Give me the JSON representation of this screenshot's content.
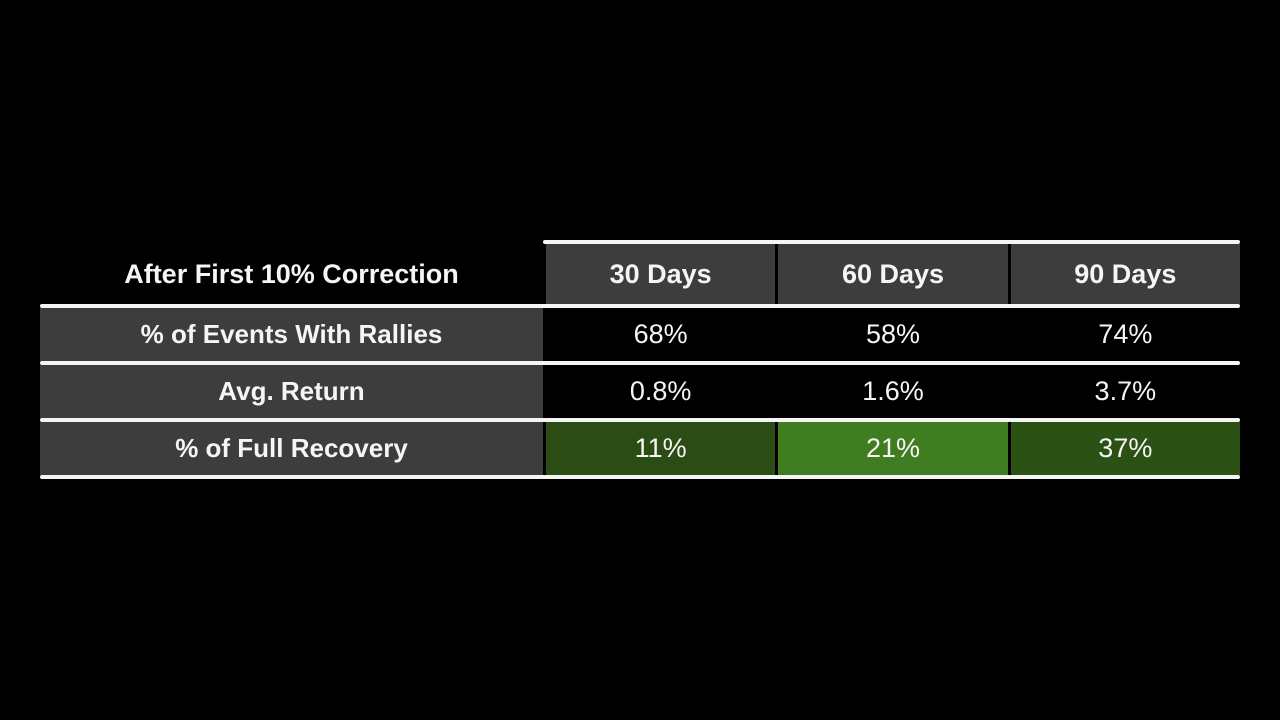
{
  "table": {
    "corner": "After First 10% Correction",
    "columns": [
      "30 Days",
      "60 Days",
      "90 Days"
    ],
    "rows": [
      {
        "label": "% of Events With Rallies",
        "values": [
          "68%",
          "58%",
          "74%"
        ]
      },
      {
        "label": "Avg. Return",
        "values": [
          "0.8%",
          "1.6%",
          "3.7%"
        ]
      },
      {
        "label": "% of Full Recovery",
        "values": [
          "11%",
          "21%",
          "37%"
        ]
      }
    ]
  },
  "colors": {
    "background": "#000000",
    "cell_gray": "#3d3d3d",
    "border_white": "#f5f5f5",
    "text": "#f5f5f5",
    "green_dark_30d": "#2b4d15",
    "green_bright_60d": "#3f7d20",
    "green_dark_90d": "#2c5114"
  },
  "chart_data": {
    "type": "table",
    "title": "After First 10% Correction",
    "columns": [
      "30 Days",
      "60 Days",
      "90 Days"
    ],
    "rows": [
      {
        "label": "% of Events With Rallies",
        "values": [
          68,
          58,
          74
        ],
        "unit": "%"
      },
      {
        "label": "Avg. Return",
        "values": [
          0.8,
          1.6,
          3.7
        ],
        "unit": "%"
      },
      {
        "label": "% of Full Recovery",
        "values": [
          11,
          21,
          37
        ],
        "unit": "%",
        "highlight": "green"
      }
    ],
    "layout": {
      "background": "black",
      "label_column_style": "dark-gray",
      "highlight_row": "% of Full Recovery",
      "row_separators": "white"
    }
  }
}
